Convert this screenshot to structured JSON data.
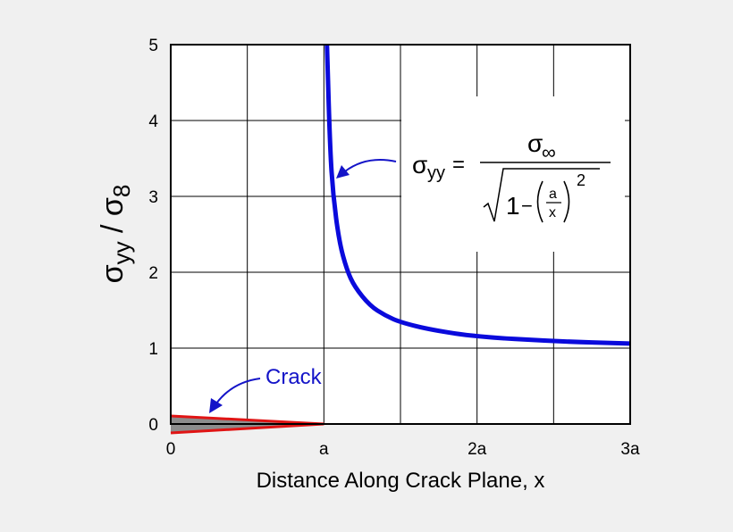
{
  "chart_data": {
    "type": "line",
    "title": "",
    "xlabel": "Distance Along Crack Plane, x",
    "ylabel": {
      "main": "σ",
      "sub": "yy",
      "sep": " / ",
      "den_main": "σ",
      "den_sub": "8"
    },
    "xlim": [
      0,
      3
    ],
    "ylim": [
      0,
      5
    ],
    "x_ticks": [
      {
        "value": 0,
        "label": "0"
      },
      {
        "value": 1,
        "label": "a"
      },
      {
        "value": 2,
        "label": "2a"
      },
      {
        "value": 3,
        "label": "3a"
      }
    ],
    "y_ticks": [
      {
        "value": 0,
        "label": "0"
      },
      {
        "value": 1,
        "label": "1"
      },
      {
        "value": 2,
        "label": "2"
      },
      {
        "value": 3,
        "label": "3"
      },
      {
        "value": 4,
        "label": "4"
      },
      {
        "value": 5,
        "label": "5"
      }
    ],
    "grid": true,
    "x_grid_step": 0.5,
    "series": [
      {
        "color": "#0a0adc",
        "formula": "1 / sqrt(1 - (a/x)^2)",
        "points": [
          [
            1.02,
            5.03
          ],
          [
            1.04,
            3.64
          ],
          [
            1.06,
            3.02
          ],
          [
            1.1,
            2.4
          ],
          [
            1.15,
            2.03
          ],
          [
            1.2,
            1.81
          ],
          [
            1.3,
            1.56
          ],
          [
            1.4,
            1.43
          ],
          [
            1.5,
            1.34
          ],
          [
            1.7,
            1.24
          ],
          [
            2.0,
            1.15
          ],
          [
            2.5,
            1.09
          ],
          [
            3.0,
            1.06
          ]
        ]
      }
    ],
    "crack": {
      "x_start": 0,
      "x_end": 1,
      "fill": "#8c8c8c",
      "edge_color": "#e01414"
    },
    "annotations": {
      "crack_label": "Crack",
      "crack_color": "#1414c8"
    },
    "equation": {
      "lhs_symbol": "σ",
      "lhs_sub": "yy",
      "equals": "=",
      "numerator_symbol": "σ",
      "numerator_sub": "∞",
      "den_one": "1",
      "den_minus": "−",
      "den_a": "a",
      "den_x": "x",
      "den_exp": "2"
    }
  }
}
